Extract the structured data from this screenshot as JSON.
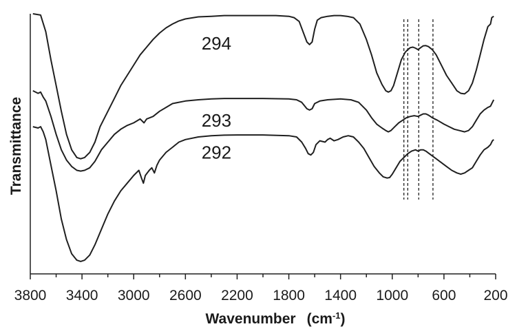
{
  "chart_data": {
    "type": "line",
    "xlabel": "Wavenumber",
    "xlabel_unit": "(cm",
    "xlabel_unit_sup": "-1",
    "xlabel_unit_close": ")",
    "ylabel": "Transmittance",
    "xlim": [
      3800,
      200
    ],
    "x_reversed": true,
    "x_ticks": [
      3800,
      3400,
      3000,
      2600,
      2200,
      1800,
      1400,
      1000,
      600,
      200
    ],
    "y_ticks": [],
    "grid": false,
    "legend": "none",
    "line_color": "#1f1f1f",
    "guide_lines_x": [
      910,
      880,
      795,
      685
    ],
    "series": [
      {
        "name": "294",
        "label_at": [
          2360,
          0.885
        ],
        "points": [
          [
            3780,
            1.0
          ],
          [
            3720,
            0.995
          ],
          [
            3680,
            0.93
          ],
          [
            3640,
            0.82
          ],
          [
            3600,
            0.72
          ],
          [
            3560,
            0.62
          ],
          [
            3520,
            0.53
          ],
          [
            3480,
            0.47
          ],
          [
            3440,
            0.44
          ],
          [
            3410,
            0.435
          ],
          [
            3380,
            0.44
          ],
          [
            3340,
            0.46
          ],
          [
            3300,
            0.5
          ],
          [
            3260,
            0.56
          ],
          [
            3200,
            0.62
          ],
          [
            3150,
            0.67
          ],
          [
            3100,
            0.72
          ],
          [
            3050,
            0.76
          ],
          [
            3000,
            0.8
          ],
          [
            2950,
            0.84
          ],
          [
            2900,
            0.87
          ],
          [
            2850,
            0.9
          ],
          [
            2800,
            0.925
          ],
          [
            2750,
            0.945
          ],
          [
            2700,
            0.96
          ],
          [
            2650,
            0.972
          ],
          [
            2600,
            0.98
          ],
          [
            2500,
            0.988
          ],
          [
            2400,
            0.99
          ],
          [
            2300,
            0.993
          ],
          [
            2200,
            0.993
          ],
          [
            2100,
            0.993
          ],
          [
            2000,
            0.993
          ],
          [
            1900,
            0.993
          ],
          [
            1800,
            0.99
          ],
          [
            1760,
            0.985
          ],
          [
            1720,
            0.97
          ],
          [
            1690,
            0.93
          ],
          [
            1660,
            0.89
          ],
          [
            1640,
            0.88
          ],
          [
            1620,
            0.89
          ],
          [
            1600,
            0.94
          ],
          [
            1580,
            0.975
          ],
          [
            1550,
            0.985
          ],
          [
            1500,
            0.99
          ],
          [
            1450,
            0.993
          ],
          [
            1400,
            0.993
          ],
          [
            1350,
            0.99
          ],
          [
            1300,
            0.985
          ],
          [
            1250,
            0.96
          ],
          [
            1200,
            0.9
          ],
          [
            1160,
            0.84
          ],
          [
            1120,
            0.77
          ],
          [
            1080,
            0.725
          ],
          [
            1050,
            0.7
          ],
          [
            1030,
            0.695
          ],
          [
            1010,
            0.7
          ],
          [
            990,
            0.72
          ],
          [
            960,
            0.77
          ],
          [
            930,
            0.82
          ],
          [
            900,
            0.85
          ],
          [
            880,
            0.86
          ],
          [
            860,
            0.868
          ],
          [
            840,
            0.87
          ],
          [
            820,
            0.866
          ],
          [
            800,
            0.86
          ],
          [
            780,
            0.868
          ],
          [
            760,
            0.875
          ],
          [
            740,
            0.876
          ],
          [
            720,
            0.872
          ],
          [
            690,
            0.86
          ],
          [
            660,
            0.84
          ],
          [
            620,
            0.8
          ],
          [
            580,
            0.76
          ],
          [
            540,
            0.73
          ],
          [
            500,
            0.7
          ],
          [
            470,
            0.69
          ],
          [
            440,
            0.688
          ],
          [
            410,
            0.7
          ],
          [
            380,
            0.73
          ],
          [
            350,
            0.78
          ],
          [
            320,
            0.84
          ],
          [
            290,
            0.9
          ],
          [
            260,
            0.95
          ],
          [
            240,
            0.96
          ],
          [
            230,
            0.985
          ],
          [
            215,
            0.99
          ]
        ]
      },
      {
        "name": "293",
        "label_at": [
          2360,
          0.585
        ],
        "points": [
          [
            3780,
            0.7
          ],
          [
            3740,
            0.69
          ],
          [
            3720,
            0.695
          ],
          [
            3700,
            0.675
          ],
          [
            3680,
            0.66
          ],
          [
            3640,
            0.6
          ],
          [
            3600,
            0.53
          ],
          [
            3560,
            0.47
          ],
          [
            3520,
            0.43
          ],
          [
            3480,
            0.405
          ],
          [
            3440,
            0.39
          ],
          [
            3410,
            0.387
          ],
          [
            3380,
            0.39
          ],
          [
            3340,
            0.4
          ],
          [
            3300,
            0.425
          ],
          [
            3250,
            0.47
          ],
          [
            3200,
            0.5
          ],
          [
            3150,
            0.53
          ],
          [
            3100,
            0.55
          ],
          [
            3050,
            0.565
          ],
          [
            3000,
            0.575
          ],
          [
            2950,
            0.59
          ],
          [
            2920,
            0.575
          ],
          [
            2900,
            0.59
          ],
          [
            2850,
            0.6
          ],
          [
            2800,
            0.62
          ],
          [
            2750,
            0.635
          ],
          [
            2700,
            0.65
          ],
          [
            2600,
            0.66
          ],
          [
            2500,
            0.665
          ],
          [
            2400,
            0.668
          ],
          [
            2300,
            0.67
          ],
          [
            2200,
            0.67
          ],
          [
            2000,
            0.67
          ],
          [
            1800,
            0.668
          ],
          [
            1740,
            0.665
          ],
          [
            1700,
            0.655
          ],
          [
            1660,
            0.63
          ],
          [
            1640,
            0.625
          ],
          [
            1620,
            0.63
          ],
          [
            1600,
            0.65
          ],
          [
            1560,
            0.66
          ],
          [
            1500,
            0.665
          ],
          [
            1400,
            0.668
          ],
          [
            1320,
            0.665
          ],
          [
            1260,
            0.655
          ],
          [
            1200,
            0.625
          ],
          [
            1160,
            0.595
          ],
          [
            1120,
            0.57
          ],
          [
            1080,
            0.555
          ],
          [
            1050,
            0.545
          ],
          [
            1030,
            0.54
          ],
          [
            1010,
            0.545
          ],
          [
            980,
            0.56
          ],
          [
            950,
            0.575
          ],
          [
            920,
            0.585
          ],
          [
            890,
            0.595
          ],
          [
            860,
            0.6
          ],
          [
            830,
            0.603
          ],
          [
            800,
            0.6
          ],
          [
            780,
            0.605
          ],
          [
            760,
            0.61
          ],
          [
            740,
            0.61
          ],
          [
            720,
            0.605
          ],
          [
            690,
            0.595
          ],
          [
            650,
            0.585
          ],
          [
            600,
            0.57
          ],
          [
            560,
            0.56
          ],
          [
            520,
            0.55
          ],
          [
            480,
            0.545
          ],
          [
            440,
            0.54
          ],
          [
            410,
            0.545
          ],
          [
            380,
            0.56
          ],
          [
            350,
            0.585
          ],
          [
            320,
            0.61
          ],
          [
            290,
            0.625
          ],
          [
            260,
            0.635
          ],
          [
            240,
            0.64
          ],
          [
            225,
            0.655
          ],
          [
            215,
            0.665
          ]
        ]
      },
      {
        "name": "292",
        "label_at": [
          2360,
          0.46
        ],
        "points": [
          [
            3780,
            0.56
          ],
          [
            3740,
            0.555
          ],
          [
            3720,
            0.56
          ],
          [
            3700,
            0.54
          ],
          [
            3680,
            0.51
          ],
          [
            3640,
            0.41
          ],
          [
            3600,
            0.31
          ],
          [
            3560,
            0.2
          ],
          [
            3520,
            0.12
          ],
          [
            3480,
            0.065
          ],
          [
            3440,
            0.04
          ],
          [
            3410,
            0.035
          ],
          [
            3380,
            0.04
          ],
          [
            3340,
            0.06
          ],
          [
            3300,
            0.1
          ],
          [
            3250,
            0.16
          ],
          [
            3200,
            0.22
          ],
          [
            3150,
            0.27
          ],
          [
            3100,
            0.31
          ],
          [
            3050,
            0.34
          ],
          [
            3000,
            0.37
          ],
          [
            2960,
            0.39
          ],
          [
            2940,
            0.36
          ],
          [
            2925,
            0.34
          ],
          [
            2910,
            0.37
          ],
          [
            2880,
            0.39
          ],
          [
            2860,
            0.4
          ],
          [
            2840,
            0.38
          ],
          [
            2820,
            0.41
          ],
          [
            2800,
            0.43
          ],
          [
            2750,
            0.46
          ],
          [
            2700,
            0.48
          ],
          [
            2650,
            0.5
          ],
          [
            2600,
            0.51
          ],
          [
            2500,
            0.52
          ],
          [
            2400,
            0.525
          ],
          [
            2300,
            0.527
          ],
          [
            2200,
            0.528
          ],
          [
            2000,
            0.528
          ],
          [
            1800,
            0.525
          ],
          [
            1740,
            0.52
          ],
          [
            1700,
            0.5
          ],
          [
            1670,
            0.475
          ],
          [
            1650,
            0.455
          ],
          [
            1630,
            0.45
          ],
          [
            1610,
            0.46
          ],
          [
            1590,
            0.49
          ],
          [
            1560,
            0.505
          ],
          [
            1520,
            0.5
          ],
          [
            1500,
            0.51
          ],
          [
            1480,
            0.515
          ],
          [
            1450,
            0.505
          ],
          [
            1420,
            0.51
          ],
          [
            1380,
            0.52
          ],
          [
            1340,
            0.525
          ],
          [
            1300,
            0.52
          ],
          [
            1260,
            0.5
          ],
          [
            1220,
            0.475
          ],
          [
            1180,
            0.44
          ],
          [
            1140,
            0.405
          ],
          [
            1100,
            0.38
          ],
          [
            1070,
            0.365
          ],
          [
            1040,
            0.36
          ],
          [
            1020,
            0.362
          ],
          [
            1000,
            0.375
          ],
          [
            970,
            0.4
          ],
          [
            940,
            0.425
          ],
          [
            910,
            0.44
          ],
          [
            880,
            0.455
          ],
          [
            850,
            0.465
          ],
          [
            820,
            0.47
          ],
          [
            800,
            0.465
          ],
          [
            780,
            0.47
          ],
          [
            760,
            0.47
          ],
          [
            740,
            0.465
          ],
          [
            700,
            0.45
          ],
          [
            660,
            0.435
          ],
          [
            620,
            0.42
          ],
          [
            580,
            0.405
          ],
          [
            540,
            0.39
          ],
          [
            500,
            0.38
          ],
          [
            470,
            0.375
          ],
          [
            440,
            0.38
          ],
          [
            410,
            0.39
          ],
          [
            380,
            0.4
          ],
          [
            350,
            0.425
          ],
          [
            320,
            0.45
          ],
          [
            290,
            0.47
          ],
          [
            260,
            0.48
          ],
          [
            240,
            0.49
          ],
          [
            225,
            0.505
          ],
          [
            215,
            0.51
          ]
        ]
      }
    ]
  }
}
